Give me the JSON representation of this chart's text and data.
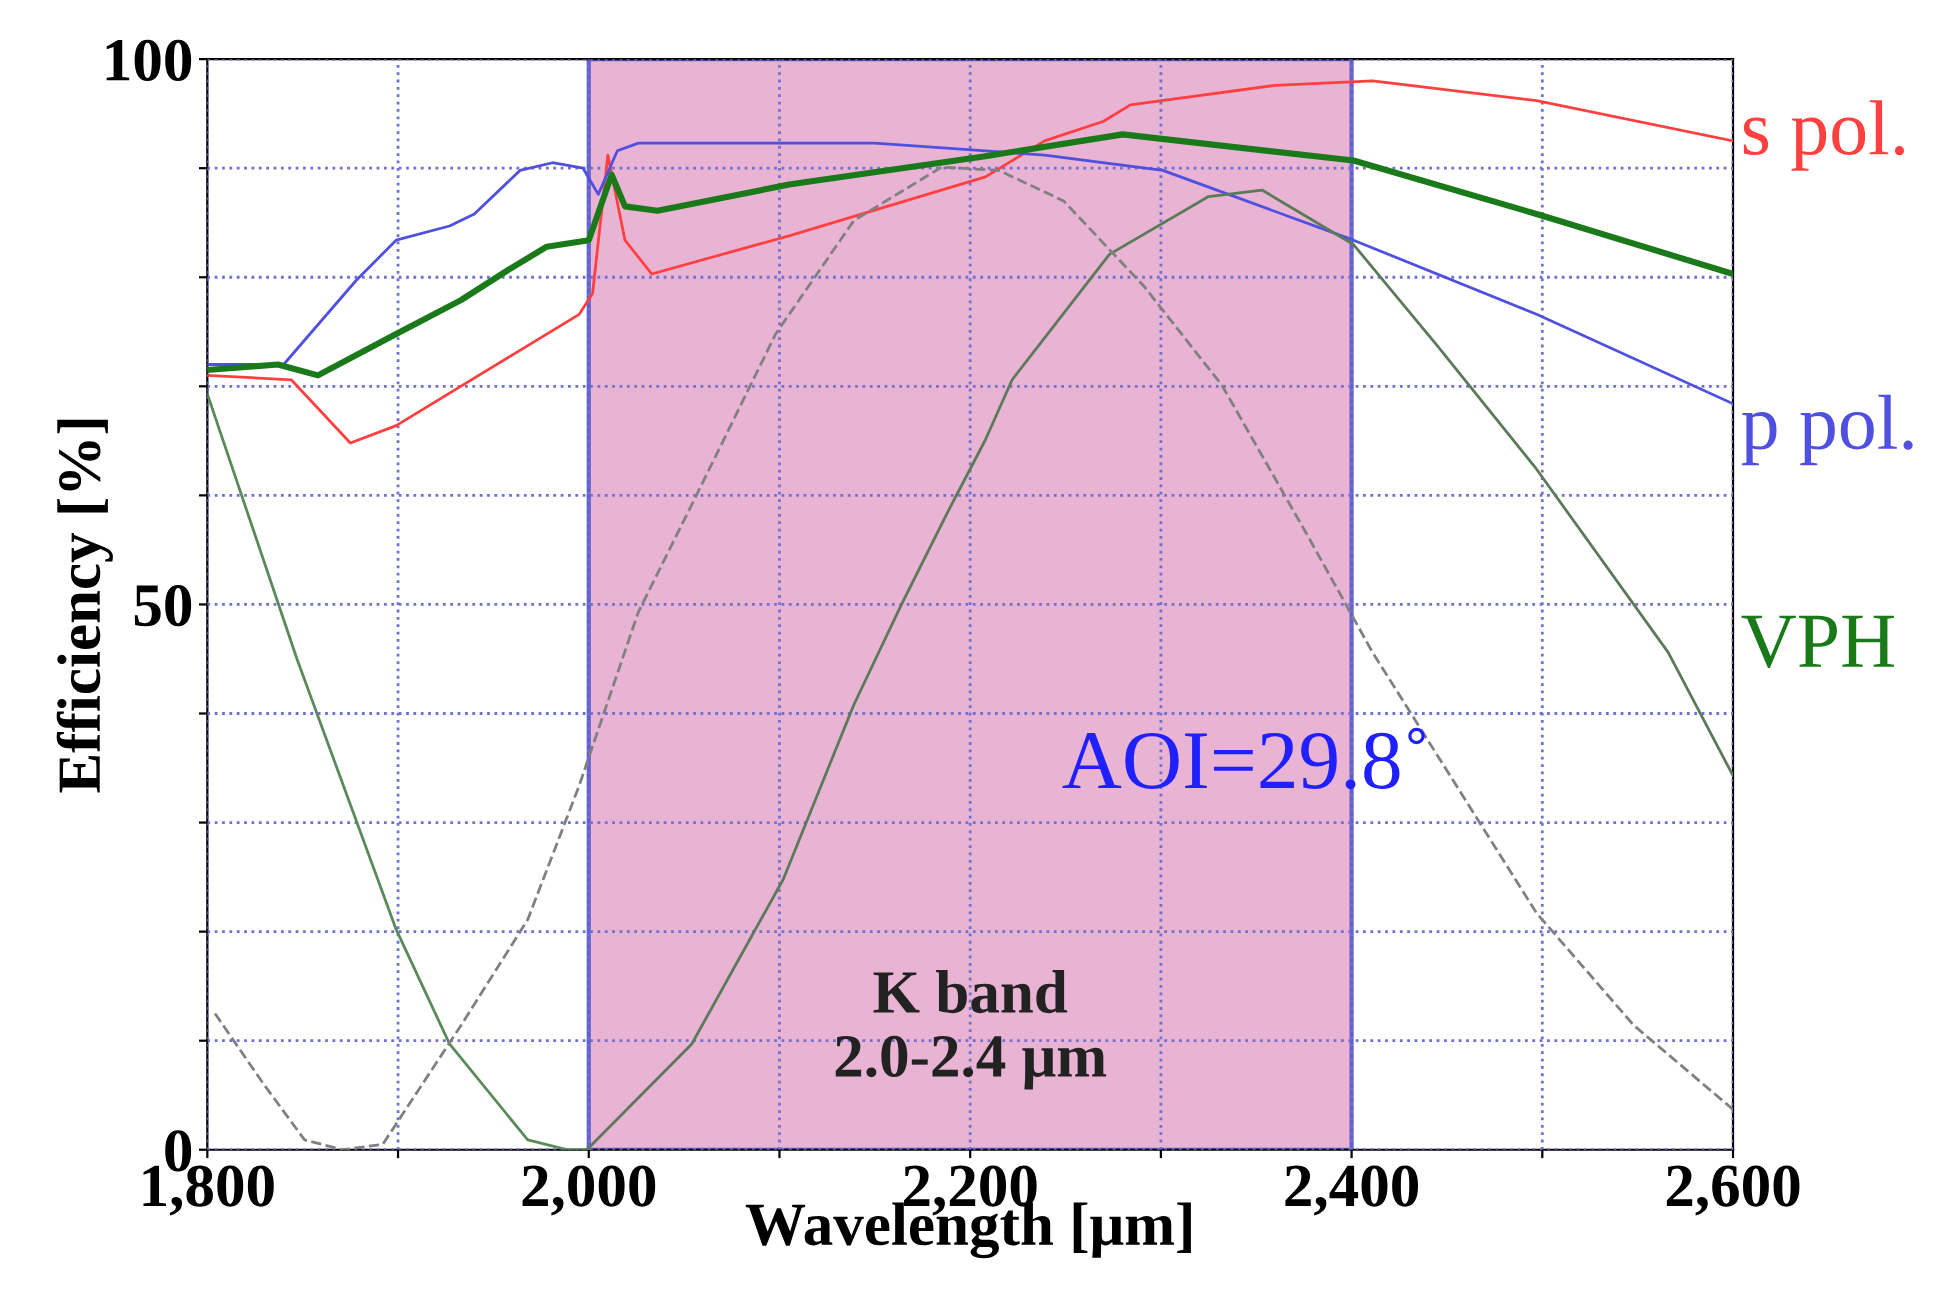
{
  "chart_data": {
    "type": "line",
    "xlabel": "Wavelength [μm]",
    "ylabel": "Efficiency [%]",
    "xlim": [
      1800,
      2600
    ],
    "ylim": [
      0,
      100
    ],
    "xticks": [
      {
        "value": 1800,
        "label": "1,800"
      },
      {
        "value": 1900,
        "label": null
      },
      {
        "value": 2000,
        "label": "2,000"
      },
      {
        "value": 2100,
        "label": null
      },
      {
        "value": 2200,
        "label": "2,200"
      },
      {
        "value": 2300,
        "label": null
      },
      {
        "value": 2400,
        "label": "2,400"
      },
      {
        "value": 2500,
        "label": null
      },
      {
        "value": 2600,
        "label": "2,600"
      }
    ],
    "yticks": [
      0,
      {
        "value": 10,
        "label": null
      },
      {
        "value": 20,
        "label": null
      },
      {
        "value": 30,
        "label": null
      },
      {
        "value": 40,
        "label": null
      },
      50,
      {
        "value": 60,
        "label": null
      },
      {
        "value": 70,
        "label": null
      },
      {
        "value": 80,
        "label": null
      },
      {
        "value": 90,
        "label": null
      },
      100
    ],
    "grid": true,
    "legend": false,
    "marker": "none",
    "bands": [
      {
        "axis": "x",
        "from": 2000,
        "to": 2400,
        "label": "K band\n2.0-2.4 μm",
        "color": "#e9b3d3"
      }
    ],
    "annotations": [
      "AOI=29.8˚"
    ],
    "series": [
      {
        "name": "s pol.",
        "color": "#ff4040",
        "line_style": "solid",
        "x": [
          1800,
          1844,
          1875,
          1899,
          1995,
          2002,
          2010,
          2019,
          2033,
          2105,
          2208,
          2239,
          2270,
          2284,
          2360,
          2411,
          2497,
          2600
        ],
        "values": [
          71,
          70.6,
          64.8,
          66.4,
          76.6,
          78.5,
          91.2,
          83.4,
          80.3,
          83.8,
          89.2,
          92.5,
          94.3,
          95.8,
          97.6,
          98,
          96.2,
          92.5
        ]
      },
      {
        "name": "p pol.",
        "color": "#5050e0",
        "line_style": "solid",
        "x": [
          1800,
          1840,
          1878,
          1899,
          1927,
          1940,
          1964,
          1981,
          1997,
          2005,
          2015,
          2026,
          2150,
          2239,
          2301,
          2401,
          2497,
          2600
        ],
        "values": [
          72,
          72,
          79.7,
          83.4,
          84.7,
          85.8,
          89.8,
          90.5,
          90,
          87.6,
          91.6,
          92.3,
          92.3,
          91.2,
          89.8,
          83.4,
          76.6,
          68.4
        ]
      },
      {
        "name": "VPH",
        "color": "#1a7a1a",
        "line_style": "solid",
        "x": [
          1800,
          1837,
          1858,
          1899,
          1933,
          1958,
          1978,
          2000,
          2012,
          2019,
          2036,
          2105,
          2208,
          2280,
          2401,
          2497,
          2600
        ],
        "values": [
          71.5,
          72,
          71,
          74.8,
          77.9,
          80.7,
          82.8,
          83.4,
          89.4,
          86.5,
          86.1,
          88.5,
          91.1,
          93.1,
          90.7,
          85.8,
          80.3
        ]
      },
      {
        "color": "#5a8a5a",
        "line_style": "solid",
        "x": [
          1800,
          1847,
          1899,
          1927,
          1968,
          1989,
          2000
        ],
        "values": [
          69.3,
          45,
          20.2,
          9.7,
          0.9,
          0,
          0
        ]
      },
      {
        "color": "#5a7a5a",
        "line_style": "solid",
        "x": [
          1999,
          2054,
          2102,
          2139,
          2164,
          2188,
          2208,
          2222,
          2273,
          2325,
          2353,
          2401,
          2445,
          2497,
          2566,
          2600
        ],
        "values": [
          0,
          9.7,
          24.8,
          40.8,
          50,
          58.4,
          65.1,
          70.6,
          82.1,
          87.4,
          88,
          83,
          73.7,
          62.4,
          45.6,
          34.3
        ]
      },
      {
        "color": "#808080",
        "line_style": "dashed",
        "x": [
          1804,
          1830,
          1851,
          1871,
          1892,
          1933,
          1968,
          1995,
          2026,
          2057,
          2098,
          2139,
          2185,
          2215,
          2249,
          2291,
          2332,
          2376,
          2411,
          2497,
          2548,
          2600
        ],
        "values": [
          12.5,
          5.9,
          0.9,
          0,
          0.5,
          11.4,
          21.1,
          33.4,
          49.3,
          60.2,
          74.8,
          85.2,
          90.1,
          89.8,
          87,
          79.2,
          70.1,
          56.6,
          45.6,
          21.7,
          11.4,
          3.7
        ]
      }
    ]
  }
}
